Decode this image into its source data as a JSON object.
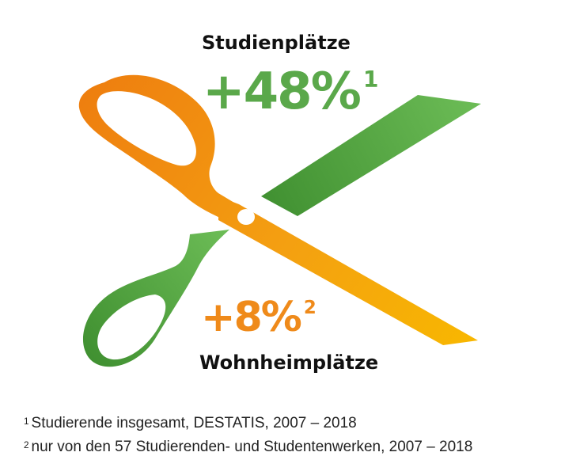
{
  "top": {
    "title": "Studienplätze",
    "stat_value": "+48%",
    "stat_marker": "1",
    "stat_color": "#5aa84a"
  },
  "bottom": {
    "title": "Wohnheimplätze",
    "stat_value": "+8%",
    "stat_marker": "2",
    "stat_color": "#ef8a1a"
  },
  "footnotes": [
    {
      "marker": "1",
      "text": "Studierende insgesamt, DESTATIS, 2007 – 2018"
    },
    {
      "marker": "2",
      "text": "nur von den 57 Studierenden- und Studentenwerken, 2007 – 2018"
    }
  ],
  "graphic": {
    "icon": "scissors-icon",
    "colors": {
      "orange_start": "#ee7d0f",
      "orange_end": "#f8b800",
      "green_light": "#6dbd57",
      "green_dark": "#3f8f30"
    }
  }
}
